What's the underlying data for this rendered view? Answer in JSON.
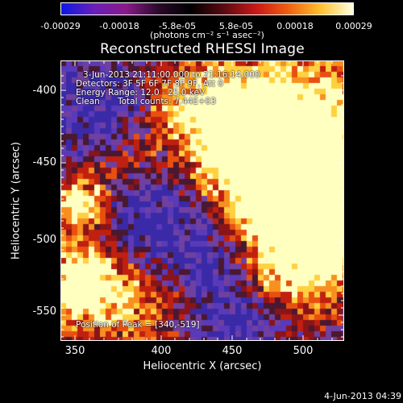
{
  "colorbar": {
    "tick_labels": [
      "-0.00029",
      "-0.00018",
      "-5.8e-05",
      "5.8e-05",
      "0.00018",
      "0.00029"
    ],
    "units": "(photons cm⁻² s⁻¹ asec⁻²)",
    "colors": [
      "#0a18e8",
      "#6a1fb8",
      "#8a1a8a",
      "#2a0a2a",
      "#000000",
      "#5a0a10",
      "#c81818",
      "#f06010",
      "#ffc030",
      "#ffffe0"
    ]
  },
  "title": "Reconstructed RHESSI Image",
  "info": {
    "time_range": "3-Jun-2013 21:11:00.000 to 21:16:14.000",
    "detectors": "Detectors: 3F 5F 6F 7F 8F 9F, Att 0",
    "energy_range": "Energy Range: 12.0 - 25.0 keV",
    "clean_label": "Clean",
    "total_counts": "Total counts: 7.44E+03",
    "peak_position": "Position of Peak = [340,-519]"
  },
  "xaxis": {
    "title": "Heliocentric X (arcsec)",
    "tick_labels": [
      "350",
      "400",
      "450",
      "500"
    ]
  },
  "yaxis": {
    "title": "Heliocentric Y (arcsec)",
    "tick_labels": [
      "-400",
      "-450",
      "-500",
      "-550"
    ]
  },
  "timestamp": "4-Jun-2013 04:39",
  "image_palette": [
    "#3a2aa8",
    "#5a3ab8",
    "#7040a0",
    "#4a1830",
    "#8a1418",
    "#c02010",
    "#e85010",
    "#f89020",
    "#ffd040",
    "#ffffc0"
  ]
}
